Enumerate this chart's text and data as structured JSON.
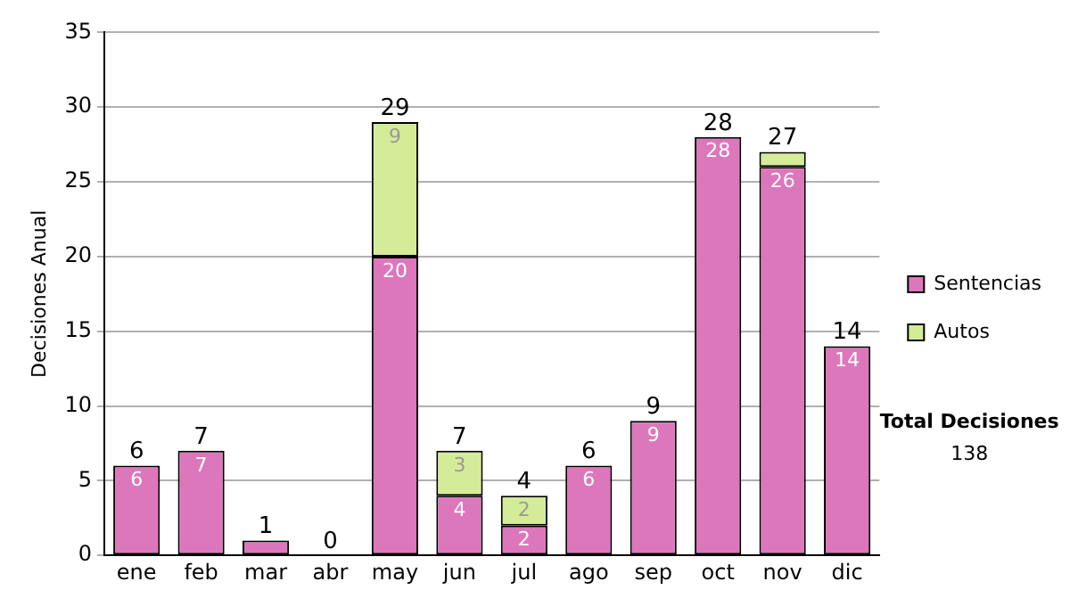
{
  "chart_data": {
    "type": "bar",
    "stacked": true,
    "ylabel": "Decisiones Anual",
    "categories": [
      "ene",
      "feb",
      "mar",
      "abr",
      "may",
      "jun",
      "jul",
      "ago",
      "sep",
      "oct",
      "nov",
      "dic"
    ],
    "series": [
      {
        "name": "Sentencias",
        "color": "#dd77bb",
        "values": [
          6,
          7,
          1,
          0,
          20,
          4,
          2,
          6,
          9,
          28,
          26,
          14
        ],
        "value_labels": [
          "6",
          "7",
          null,
          null,
          "20",
          "4",
          "2",
          "6",
          "9",
          "28",
          "26",
          "14"
        ]
      },
      {
        "name": "Autos",
        "color": "#d4ec98",
        "values": [
          0,
          0,
          0,
          0,
          9,
          3,
          2,
          0,
          0,
          0,
          1,
          0
        ],
        "value_labels": [
          null,
          null,
          null,
          null,
          "9",
          "3",
          "2",
          null,
          null,
          null,
          null,
          null
        ]
      }
    ],
    "totals": [
      "6",
      "7",
      "1",
      "0",
      "29",
      "7",
      "4",
      "6",
      "9",
      "28",
      "27",
      "14"
    ],
    "ylim": [
      0,
      35
    ],
    "yticks": [
      0,
      5,
      10,
      15,
      20,
      25,
      30,
      35
    ],
    "grid": "y",
    "legend": "right",
    "annotations": [
      "Total Decisiones",
      "138"
    ]
  }
}
